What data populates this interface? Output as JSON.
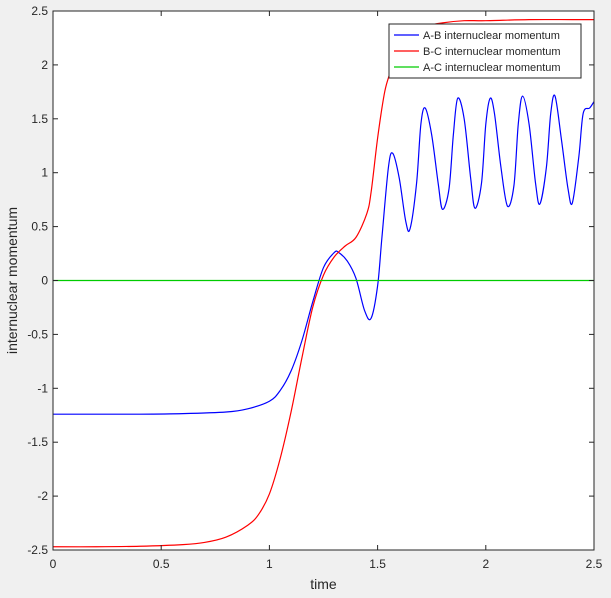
{
  "chart_data": {
    "type": "line",
    "title": "",
    "xlabel": "time",
    "ylabel": "internuclear momentum",
    "xlim": [
      0,
      2.5
    ],
    "ylim": [
      -2.5,
      2.5
    ],
    "xticks": [
      0,
      0.5,
      1,
      1.5,
      2,
      2.5
    ],
    "xtick_labels": [
      "0",
      "0.5",
      "1",
      "1.5",
      "2",
      "2.5"
    ],
    "yticks": [
      -2.5,
      -2,
      -1.5,
      -1,
      -0.5,
      0,
      0.5,
      1,
      1.5,
      2,
      2.5
    ],
    "ytick_labels": [
      "-2.5",
      "-2",
      "-1.5",
      "-1",
      "-0.5",
      "0",
      "0.5",
      "1",
      "1.5",
      "2",
      "2.5"
    ],
    "grid": false,
    "legend_position": "top-right",
    "series": [
      {
        "name": "A-B internuclear momentum",
        "color": "#0000ff",
        "x": [
          0,
          0.2,
          0.4,
          0.6,
          0.8,
          0.9,
          1.0,
          1.05,
          1.1,
          1.15,
          1.2,
          1.25,
          1.3,
          1.32,
          1.36,
          1.4,
          1.44,
          1.47,
          1.5,
          1.52,
          1.55,
          1.57,
          1.6,
          1.63,
          1.65,
          1.68,
          1.7,
          1.72,
          1.75,
          1.78,
          1.8,
          1.83,
          1.85,
          1.87,
          1.9,
          1.93,
          1.95,
          1.98,
          2.0,
          2.02,
          2.04,
          2.07,
          2.1,
          2.13,
          2.15,
          2.17,
          2.2,
          2.23,
          2.25,
          2.28,
          2.3,
          2.32,
          2.35,
          2.38,
          2.4,
          2.43,
          2.45,
          2.48,
          2.5
        ],
        "y": [
          -1.24,
          -1.24,
          -1.24,
          -1.235,
          -1.22,
          -1.19,
          -1.12,
          -1.02,
          -0.84,
          -0.56,
          -0.2,
          0.12,
          0.26,
          0.26,
          0.18,
          0.02,
          -0.28,
          -0.35,
          -0.05,
          0.4,
          1.05,
          1.18,
          0.95,
          0.55,
          0.48,
          0.9,
          1.45,
          1.6,
          1.35,
          0.9,
          0.66,
          0.85,
          1.35,
          1.69,
          1.5,
          0.95,
          0.67,
          0.9,
          1.45,
          1.69,
          1.55,
          1.05,
          0.69,
          0.88,
          1.45,
          1.71,
          1.45,
          0.9,
          0.71,
          1.05,
          1.55,
          1.71,
          1.3,
          0.85,
          0.72,
          1.15,
          1.55,
          1.6,
          1.66
        ]
      },
      {
        "name": "B-C internuclear momentum",
        "color": "#ff0000",
        "x": [
          0,
          0.2,
          0.4,
          0.6,
          0.7,
          0.8,
          0.9,
          0.95,
          1.0,
          1.05,
          1.1,
          1.15,
          1.2,
          1.25,
          1.3,
          1.35,
          1.4,
          1.45,
          1.47,
          1.5,
          1.53,
          1.55,
          1.58,
          1.6,
          1.65,
          1.7,
          1.8,
          1.9,
          2.0,
          2.2,
          2.4,
          2.5
        ],
        "y": [
          -2.47,
          -2.47,
          -2.465,
          -2.45,
          -2.43,
          -2.38,
          -2.27,
          -2.17,
          -1.98,
          -1.65,
          -1.22,
          -0.72,
          -0.25,
          0.05,
          0.22,
          0.32,
          0.4,
          0.62,
          0.82,
          1.32,
          1.72,
          1.88,
          2.05,
          2.15,
          2.28,
          2.35,
          2.39,
          2.41,
          2.41,
          2.42,
          2.42,
          2.42
        ]
      },
      {
        "name": "A-C internuclear momentum",
        "color": "#00cc00",
        "x": [
          0,
          2.5
        ],
        "y": [
          0,
          0
        ]
      }
    ]
  }
}
